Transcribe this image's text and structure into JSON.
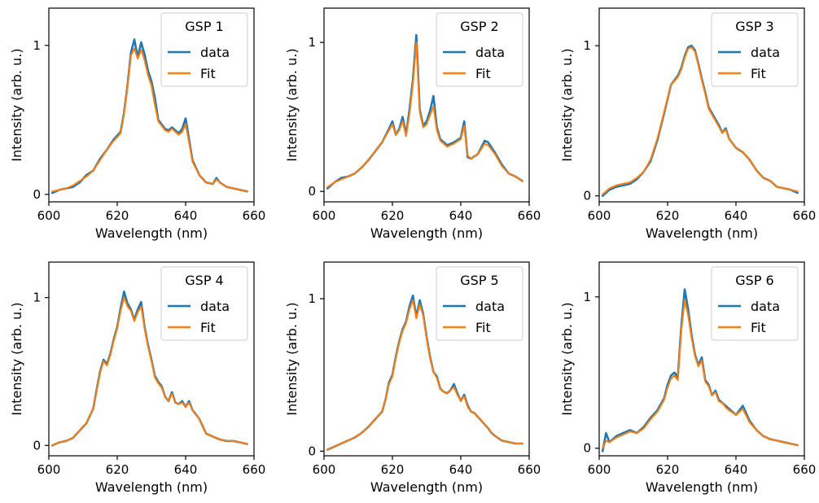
{
  "figure": {
    "title": ""
  },
  "colors": {
    "data": "#1f77b4",
    "fit": "#ff7f0e",
    "axis": "#000000",
    "legend_border": "#cccccc"
  },
  "chart_data": [
    {
      "type": "line",
      "legend_title": "GSP 1",
      "legend_position": "top-right",
      "xlabel": "Wavelength (nm)",
      "ylabel": "Intensity (arb. u.)",
      "xlim": [
        600,
        660
      ],
      "ylim": [
        -0.05,
        1.25
      ],
      "xticks": [
        600,
        620,
        640,
        660
      ],
      "yticks": [
        0,
        1
      ],
      "grid": false,
      "x": [
        601,
        603,
        605,
        607,
        609,
        611,
        613,
        615,
        617,
        619,
        621,
        622,
        623,
        624,
        625,
        626,
        627,
        628,
        629,
        630,
        631,
        632,
        633,
        634,
        635,
        636,
        637,
        638,
        639,
        640,
        641,
        642,
        644,
        646,
        648,
        649,
        650,
        652,
        654,
        656,
        658
      ],
      "series": [
        {
          "name": "data",
          "values": [
            0.01,
            0.03,
            0.04,
            0.05,
            0.08,
            0.13,
            0.16,
            0.24,
            0.3,
            0.37,
            0.42,
            0.55,
            0.73,
            0.95,
            1.04,
            0.92,
            1.02,
            0.94,
            0.83,
            0.76,
            0.65,
            0.5,
            0.47,
            0.44,
            0.43,
            0.45,
            0.43,
            0.41,
            0.44,
            0.51,
            0.37,
            0.23,
            0.13,
            0.08,
            0.07,
            0.11,
            0.08,
            0.05,
            0.04,
            0.03,
            0.02
          ]
        },
        {
          "name": "Fit",
          "values": [
            0.02,
            0.03,
            0.04,
            0.06,
            0.09,
            0.12,
            0.16,
            0.23,
            0.3,
            0.36,
            0.41,
            0.54,
            0.72,
            0.93,
            0.98,
            0.91,
            0.97,
            0.9,
            0.8,
            0.73,
            0.6,
            0.49,
            0.46,
            0.43,
            0.42,
            0.44,
            0.42,
            0.4,
            0.42,
            0.47,
            0.35,
            0.22,
            0.13,
            0.08,
            0.07,
            0.1,
            0.08,
            0.05,
            0.04,
            0.03,
            0.02
          ]
        }
      ]
    },
    {
      "type": "line",
      "legend_title": "GSP 2",
      "legend_position": "top-right",
      "xlabel": "Wavelength (nm)",
      "ylabel": "Intensity (arb. u.)",
      "xlim": [
        600,
        660
      ],
      "ylim": [
        -0.07,
        1.23
      ],
      "xticks": [
        600,
        620,
        640,
        660
      ],
      "yticks": [
        0,
        1
      ],
      "grid": false,
      "x": [
        601,
        603,
        605,
        607,
        609,
        611,
        613,
        615,
        617,
        619,
        620,
        621,
        622,
        623,
        624,
        625,
        626,
        627,
        628,
        629,
        630,
        631,
        632,
        633,
        634,
        636,
        638,
        640,
        641,
        642,
        643,
        645,
        647,
        648,
        650,
        652,
        654,
        656,
        658
      ],
      "series": [
        {
          "name": "data",
          "values": [
            0.02,
            0.06,
            0.09,
            0.1,
            0.12,
            0.16,
            0.21,
            0.27,
            0.33,
            0.42,
            0.47,
            0.38,
            0.42,
            0.5,
            0.38,
            0.55,
            0.75,
            1.05,
            0.55,
            0.44,
            0.47,
            0.54,
            0.64,
            0.43,
            0.35,
            0.31,
            0.33,
            0.36,
            0.47,
            0.23,
            0.22,
            0.25,
            0.34,
            0.33,
            0.26,
            0.18,
            0.12,
            0.1,
            0.07
          ]
        },
        {
          "name": "Fit",
          "values": [
            0.03,
            0.06,
            0.08,
            0.1,
            0.12,
            0.16,
            0.21,
            0.27,
            0.33,
            0.41,
            0.45,
            0.38,
            0.41,
            0.47,
            0.37,
            0.52,
            0.72,
            1.0,
            0.53,
            0.43,
            0.45,
            0.51,
            0.57,
            0.41,
            0.34,
            0.3,
            0.32,
            0.35,
            0.44,
            0.24,
            0.22,
            0.25,
            0.32,
            0.31,
            0.25,
            0.17,
            0.12,
            0.1,
            0.07
          ]
        }
      ]
    },
    {
      "type": "line",
      "legend_title": "GSP 3",
      "legend_position": "top-right",
      "xlabel": "Wavelength (nm)",
      "ylabel": "Intensity (arb. u.)",
      "xlim": [
        600,
        660
      ],
      "ylim": [
        -0.04,
        1.25
      ],
      "xticks": [
        600,
        620,
        640,
        660
      ],
      "yticks": [
        0,
        1
      ],
      "grid": false,
      "x": [
        601,
        603,
        605,
        607,
        609,
        611,
        613,
        615,
        617,
        619,
        621,
        623,
        624,
        625,
        626,
        627,
        628,
        629,
        630,
        631,
        632,
        633,
        634,
        635,
        636,
        637,
        638,
        640,
        642,
        644,
        646,
        648,
        650,
        652,
        654,
        656,
        658
      ],
      "series": [
        {
          "name": "data",
          "values": [
            0.0,
            0.04,
            0.06,
            0.07,
            0.08,
            0.11,
            0.16,
            0.23,
            0.37,
            0.55,
            0.74,
            0.8,
            0.85,
            0.93,
            0.99,
            1.0,
            0.97,
            0.88,
            0.78,
            0.69,
            0.59,
            0.55,
            0.51,
            0.47,
            0.42,
            0.45,
            0.38,
            0.32,
            0.29,
            0.24,
            0.17,
            0.12,
            0.1,
            0.06,
            0.05,
            0.04,
            0.02
          ]
        },
        {
          "name": "Fit",
          "values": [
            0.01,
            0.05,
            0.07,
            0.08,
            0.09,
            0.12,
            0.16,
            0.24,
            0.38,
            0.56,
            0.74,
            0.79,
            0.84,
            0.92,
            0.98,
            0.99,
            0.96,
            0.87,
            0.77,
            0.68,
            0.58,
            0.54,
            0.5,
            0.46,
            0.42,
            0.44,
            0.38,
            0.32,
            0.29,
            0.24,
            0.17,
            0.12,
            0.1,
            0.06,
            0.05,
            0.04,
            0.03
          ]
        }
      ]
    },
    {
      "type": "line",
      "legend_title": "GSP 4",
      "legend_position": "top-right",
      "xlabel": "Wavelength (nm)",
      "ylabel": "Intensity (arb. u.)",
      "xlim": [
        600,
        660
      ],
      "ylim": [
        -0.07,
        1.24
      ],
      "xticks": [
        600,
        620,
        640,
        660
      ],
      "yticks": [
        0,
        1
      ],
      "grid": false,
      "x": [
        601,
        603,
        605,
        607,
        609,
        611,
        613,
        614,
        615,
        616,
        617,
        618,
        619,
        620,
        621,
        622,
        623,
        624,
        625,
        626,
        627,
        628,
        629,
        630,
        631,
        632,
        633,
        634,
        635,
        636,
        637,
        638,
        639,
        640,
        641,
        642,
        643,
        644,
        646,
        648,
        650,
        652,
        654,
        656,
        658
      ],
      "series": [
        {
          "name": "data",
          "values": [
            0.0,
            0.02,
            0.03,
            0.05,
            0.1,
            0.15,
            0.25,
            0.38,
            0.5,
            0.58,
            0.55,
            0.62,
            0.72,
            0.8,
            0.93,
            1.04,
            0.96,
            0.92,
            0.85,
            0.92,
            0.97,
            0.8,
            0.68,
            0.58,
            0.47,
            0.43,
            0.4,
            0.33,
            0.3,
            0.36,
            0.29,
            0.28,
            0.3,
            0.26,
            0.3,
            0.24,
            0.21,
            0.18,
            0.08,
            0.06,
            0.04,
            0.03,
            0.03,
            0.02,
            0.01
          ]
        },
        {
          "name": "Fit",
          "values": [
            0.0,
            0.02,
            0.03,
            0.05,
            0.1,
            0.15,
            0.25,
            0.37,
            0.49,
            0.57,
            0.54,
            0.61,
            0.71,
            0.79,
            0.91,
            1.0,
            0.94,
            0.91,
            0.84,
            0.9,
            0.94,
            0.79,
            0.67,
            0.57,
            0.46,
            0.42,
            0.39,
            0.33,
            0.3,
            0.35,
            0.29,
            0.28,
            0.29,
            0.26,
            0.29,
            0.24,
            0.21,
            0.18,
            0.08,
            0.06,
            0.04,
            0.03,
            0.03,
            0.02,
            0.01
          ]
        }
      ]
    },
    {
      "type": "line",
      "legend_title": "GSP 5",
      "legend_position": "top-right",
      "xlabel": "Wavelength (nm)",
      "ylabel": "Intensity (arb. u.)",
      "xlim": [
        600,
        660
      ],
      "ylim": [
        -0.03,
        1.24
      ],
      "xticks": [
        600,
        620,
        640,
        660
      ],
      "yticks": [
        0,
        1
      ],
      "grid": false,
      "x": [
        601,
        603,
        605,
        607,
        609,
        611,
        613,
        615,
        617,
        618,
        619,
        620,
        621,
        622,
        623,
        624,
        625,
        626,
        627,
        628,
        629,
        630,
        631,
        632,
        633,
        634,
        635,
        636,
        637,
        638,
        639,
        640,
        641,
        642,
        643,
        644,
        646,
        648,
        649,
        650,
        652,
        654,
        656,
        658
      ],
      "series": [
        {
          "name": "data",
          "values": [
            0.01,
            0.03,
            0.05,
            0.07,
            0.09,
            0.12,
            0.16,
            0.21,
            0.26,
            0.34,
            0.45,
            0.5,
            0.62,
            0.72,
            0.8,
            0.85,
            0.95,
            1.02,
            0.88,
            0.99,
            0.9,
            0.75,
            0.62,
            0.52,
            0.49,
            0.41,
            0.39,
            0.38,
            0.4,
            0.44,
            0.38,
            0.33,
            0.37,
            0.3,
            0.26,
            0.25,
            0.2,
            0.15,
            0.12,
            0.1,
            0.07,
            0.06,
            0.05,
            0.05
          ]
        },
        {
          "name": "Fit",
          "values": [
            0.01,
            0.03,
            0.05,
            0.07,
            0.09,
            0.12,
            0.16,
            0.21,
            0.26,
            0.34,
            0.44,
            0.49,
            0.61,
            0.71,
            0.79,
            0.84,
            0.93,
            0.99,
            0.87,
            0.96,
            0.89,
            0.74,
            0.61,
            0.52,
            0.48,
            0.41,
            0.39,
            0.38,
            0.4,
            0.42,
            0.37,
            0.33,
            0.36,
            0.29,
            0.26,
            0.25,
            0.2,
            0.15,
            0.12,
            0.1,
            0.07,
            0.06,
            0.05,
            0.05
          ]
        }
      ]
    },
    {
      "type": "line",
      "legend_title": "GSP 6",
      "legend_position": "top-right",
      "xlabel": "Wavelength (nm)",
      "ylabel": "Intensity (arb. u.)",
      "xlim": [
        600,
        660
      ],
      "ylim": [
        -0.05,
        1.23
      ],
      "xticks": [
        600,
        620,
        640,
        660
      ],
      "yticks": [
        0,
        1
      ],
      "grid": false,
      "x": [
        601,
        602,
        603,
        605,
        607,
        609,
        611,
        613,
        615,
        617,
        619,
        620,
        621,
        622,
        623,
        624,
        625,
        626,
        627,
        628,
        629,
        630,
        631,
        632,
        633,
        634,
        635,
        636,
        637,
        638,
        640,
        642,
        644,
        646,
        648,
        650,
        652,
        654,
        656,
        658
      ],
      "series": [
        {
          "name": "data",
          "values": [
            -0.02,
            0.1,
            0.04,
            0.08,
            0.1,
            0.12,
            0.1,
            0.14,
            0.2,
            0.25,
            0.33,
            0.42,
            0.48,
            0.5,
            0.47,
            0.8,
            1.05,
            0.92,
            0.75,
            0.62,
            0.55,
            0.6,
            0.45,
            0.42,
            0.35,
            0.38,
            0.32,
            0.3,
            0.28,
            0.26,
            0.22,
            0.28,
            0.18,
            0.12,
            0.08,
            0.06,
            0.05,
            0.04,
            0.03,
            0.02
          ]
        },
        {
          "name": "Fit",
          "values": [
            0.0,
            0.05,
            0.04,
            0.07,
            0.09,
            0.11,
            0.1,
            0.13,
            0.19,
            0.24,
            0.32,
            0.4,
            0.46,
            0.48,
            0.45,
            0.77,
            0.98,
            0.88,
            0.73,
            0.61,
            0.54,
            0.58,
            0.44,
            0.41,
            0.35,
            0.37,
            0.31,
            0.3,
            0.27,
            0.25,
            0.22,
            0.26,
            0.17,
            0.12,
            0.08,
            0.06,
            0.05,
            0.04,
            0.03,
            0.02
          ]
        }
      ]
    }
  ]
}
